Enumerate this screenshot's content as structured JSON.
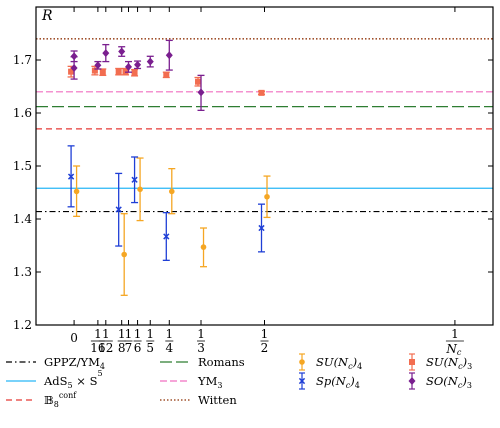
{
  "chart_data": {
    "type": "scatter",
    "ylabel": "R",
    "ylim": [
      1.2,
      1.8
    ],
    "xlim": [
      -0.1,
      1.1
    ],
    "x_scale": "reciprocal (1/Nc)",
    "y_ticks": [
      "1.2",
      "1.3",
      "1.4",
      "1.5",
      "1.6",
      "1.7"
    ],
    "y_tick_values": [
      1.2,
      1.3,
      1.4,
      1.5,
      1.6,
      1.7
    ],
    "x_ticks": [
      {
        "value": 0,
        "num": "0",
        "den": ""
      },
      {
        "value": 0.0625,
        "num": "1",
        "den": "16"
      },
      {
        "value": 0.0833,
        "num": "1",
        "den": "12"
      },
      {
        "value": 0.125,
        "num": "1",
        "den": "8"
      },
      {
        "value": 0.1429,
        "num": "1",
        "den": "7"
      },
      {
        "value": 0.1667,
        "num": "1",
        "den": "6"
      },
      {
        "value": 0.2,
        "num": "1",
        "den": "5"
      },
      {
        "value": 0.25,
        "num": "1",
        "den": "4"
      },
      {
        "value": 0.3333,
        "num": "1",
        "den": "3"
      },
      {
        "value": 0.5,
        "num": "1",
        "den": "2"
      },
      {
        "value": 1.0,
        "num": "1",
        "den": "Nc"
      }
    ],
    "reference_lines": [
      {
        "name": "GPPZ/YM4",
        "value": 1.414,
        "color": "#000000",
        "dash": "6,3,1.5,3"
      },
      {
        "name": "AdS5 × S5",
        "value": 1.458,
        "color": "#29b6f6",
        "dash": ""
      },
      {
        "name": "B8conf",
        "value": 1.57,
        "color": "#e53935",
        "dash": "6,4"
      },
      {
        "name": "Romans",
        "value": 1.612,
        "color": "#2e7d32",
        "dash": "12,4"
      },
      {
        "name": "YM3",
        "value": 1.64,
        "color": "#f06fc0",
        "dash": "7,3"
      },
      {
        "name": "Witten",
        "value": 1.74,
        "color": "#a0522d",
        "dash": "1.5,2"
      }
    ],
    "series": [
      {
        "name": "SU(Nc)4",
        "color": "#f5a623",
        "marker": "circle",
        "points": [
          {
            "x": 0.0,
            "y": 1.452,
            "lo": 1.405,
            "hi": 1.5
          },
          {
            "x": 0.125,
            "y": 1.333,
            "lo": 1.256,
            "hi": 1.41
          },
          {
            "x": 0.1667,
            "y": 1.456,
            "lo": 1.397,
            "hi": 1.515
          },
          {
            "x": 0.25,
            "y": 1.452,
            "lo": 1.41,
            "hi": 1.495
          },
          {
            "x": 0.3333,
            "y": 1.347,
            "lo": 1.31,
            "hi": 1.383
          },
          {
            "x": 0.5,
            "y": 1.442,
            "lo": 1.403,
            "hi": 1.481
          }
        ]
      },
      {
        "name": "Sp(Nc)4",
        "color": "#1f3fd6",
        "marker": "x",
        "points": [
          {
            "x": 0.0,
            "y": 1.48,
            "lo": 1.423,
            "hi": 1.538
          },
          {
            "x": 0.125,
            "y": 1.418,
            "lo": 1.349,
            "hi": 1.486
          },
          {
            "x": 0.1667,
            "y": 1.474,
            "lo": 1.431,
            "hi": 1.517
          },
          {
            "x": 0.25,
            "y": 1.367,
            "lo": 1.322,
            "hi": 1.412
          },
          {
            "x": 0.5,
            "y": 1.383,
            "lo": 1.338,
            "hi": 1.428
          }
        ]
      },
      {
        "name": "SU(Nc)3",
        "color": "#f26d50",
        "marker": "square",
        "points": [
          {
            "x": 0.0,
            "y": 1.678,
            "lo": 1.668,
            "hi": 1.688
          },
          {
            "x": 0.0625,
            "y": 1.68,
            "lo": 1.672,
            "hi": 1.688
          },
          {
            "x": 0.0833,
            "y": 1.677,
            "lo": 1.671,
            "hi": 1.683
          },
          {
            "x": 0.125,
            "y": 1.678,
            "lo": 1.672,
            "hi": 1.684
          },
          {
            "x": 0.1429,
            "y": 1.678,
            "lo": 1.672,
            "hi": 1.684
          },
          {
            "x": 0.1667,
            "y": 1.676,
            "lo": 1.67,
            "hi": 1.682
          },
          {
            "x": 0.25,
            "y": 1.672,
            "lo": 1.667,
            "hi": 1.677
          },
          {
            "x": 0.3333,
            "y": 1.659,
            "lo": 1.651,
            "hi": 1.667
          },
          {
            "x": 0.5,
            "y": 1.638,
            "lo": 1.635,
            "hi": 1.641
          }
        ]
      },
      {
        "name": "SO(Nc)3",
        "color": "#7a1f8f",
        "marker": "diamond",
        "points": [
          {
            "x": 0.0,
            "y": 1.685,
            "lo": 1.664,
            "hi": 1.706
          },
          {
            "x": 0.0,
            "y": 1.707,
            "lo": 1.697,
            "hi": 1.717
          },
          {
            "x": 0.0625,
            "y": 1.69,
            "lo": 1.683,
            "hi": 1.697
          },
          {
            "x": 0.0833,
            "y": 1.713,
            "lo": 1.697,
            "hi": 1.729
          },
          {
            "x": 0.125,
            "y": 1.716,
            "lo": 1.707,
            "hi": 1.725
          },
          {
            "x": 0.1429,
            "y": 1.687,
            "lo": 1.677,
            "hi": 1.697
          },
          {
            "x": 0.1667,
            "y": 1.691,
            "lo": 1.684,
            "hi": 1.698
          },
          {
            "x": 0.2,
            "y": 1.697,
            "lo": 1.687,
            "hi": 1.707
          },
          {
            "x": 0.25,
            "y": 1.709,
            "lo": 1.681,
            "hi": 1.737
          },
          {
            "x": 0.3333,
            "y": 1.639,
            "lo": 1.605,
            "hi": 1.671
          }
        ]
      }
    ],
    "legend": {
      "placement": "bottom",
      "entries": [
        {
          "key": "gppz",
          "label_main": "GPPZ/YM",
          "sub": "4",
          "sup": ""
        },
        {
          "key": "romans",
          "label_main": "Romans",
          "sub": "",
          "sup": ""
        },
        {
          "key": "su4",
          "label_main": "SU(N",
          "sub": "c",
          "tail": ")",
          "sub2": "4"
        },
        {
          "key": "su3",
          "label_main": "SU(N",
          "sub": "c",
          "tail": ")",
          "sub2": "3"
        },
        {
          "key": "ads",
          "label_main": "AdS",
          "sub": "5",
          "mid": " × S",
          "sup": "5"
        },
        {
          "key": "ym3",
          "label_main": "YM",
          "sub": "3",
          "sup": ""
        },
        {
          "key": "sp4",
          "label_main": "Sp(N",
          "sub": "c",
          "tail": ")",
          "sub2": "4"
        },
        {
          "key": "so3",
          "label_main": "SO(N",
          "sub": "c",
          "tail": ")",
          "sub2": "3"
        },
        {
          "key": "bconf",
          "label_main": "𝔹",
          "sub": "8",
          "sup": "conf"
        },
        {
          "key": "witten",
          "label_main": "Witten",
          "sub": "",
          "sup": ""
        }
      ]
    }
  }
}
